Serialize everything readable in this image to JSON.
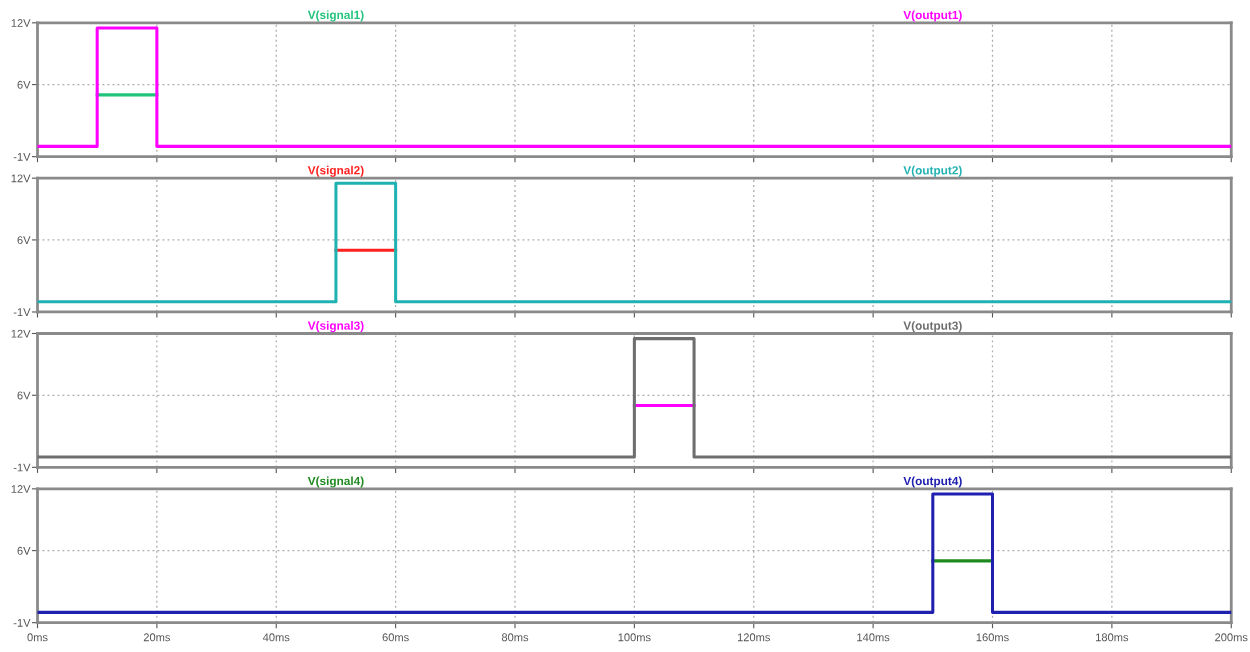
{
  "chart_data": [
    {
      "type": "line",
      "xlim": [
        0,
        200
      ],
      "xticks": [
        {
          "value": 0,
          "label": null
        },
        {
          "value": 20,
          "label": null
        },
        {
          "value": 40,
          "label": null
        },
        {
          "value": 60,
          "label": null
        },
        {
          "value": 80,
          "label": null
        },
        {
          "value": 100,
          "label": null
        },
        {
          "value": 120,
          "label": null
        },
        {
          "value": 140,
          "label": null
        },
        {
          "value": 160,
          "label": null
        },
        {
          "value": 180,
          "label": null
        },
        {
          "value": 200,
          "label": null
        }
      ],
      "ylim": [
        -1,
        12
      ],
      "yticks": [
        {
          "value": -1,
          "label": "-1V"
        },
        {
          "value": 6,
          "label": "6V"
        },
        {
          "value": 12,
          "label": "12V"
        }
      ],
      "grid": true,
      "legend": "top",
      "tick_labels": "y",
      "series": [
        {
          "name": "V(signal1)",
          "color": "#20c47a",
          "x": [
            10,
            20
          ],
          "values": [
            5,
            5
          ]
        },
        {
          "name": "V(output1)",
          "color": "#ff00ff",
          "x": [
            0,
            10,
            10,
            20,
            20,
            200
          ],
          "values": [
            0,
            0,
            11.5,
            11.5,
            0,
            0
          ]
        }
      ]
    },
    {
      "type": "line",
      "xlim": [
        0,
        200
      ],
      "xticks": [
        {
          "value": 0,
          "label": null
        },
        {
          "value": 20,
          "label": null
        },
        {
          "value": 40,
          "label": null
        },
        {
          "value": 60,
          "label": null
        },
        {
          "value": 80,
          "label": null
        },
        {
          "value": 100,
          "label": null
        },
        {
          "value": 120,
          "label": null
        },
        {
          "value": 140,
          "label": null
        },
        {
          "value": 160,
          "label": null
        },
        {
          "value": 180,
          "label": null
        },
        {
          "value": 200,
          "label": null
        }
      ],
      "ylim": [
        -1,
        12
      ],
      "yticks": [
        {
          "value": -1,
          "label": "-1V"
        },
        {
          "value": 6,
          "label": "6V"
        },
        {
          "value": 12,
          "label": "12V"
        }
      ],
      "grid": true,
      "legend": "top",
      "tick_labels": "y",
      "series": [
        {
          "name": "V(signal2)",
          "color": "#ff2020",
          "x": [
            50,
            60
          ],
          "values": [
            5,
            5
          ]
        },
        {
          "name": "V(output2)",
          "color": "#20b2b2",
          "x": [
            0,
            50,
            50,
            60,
            60,
            200
          ],
          "values": [
            0,
            0,
            11.5,
            11.5,
            0,
            0
          ]
        }
      ]
    },
    {
      "type": "line",
      "xlim": [
        0,
        200
      ],
      "xticks": [
        {
          "value": 0,
          "label": null
        },
        {
          "value": 20,
          "label": null
        },
        {
          "value": 40,
          "label": null
        },
        {
          "value": 60,
          "label": null
        },
        {
          "value": 80,
          "label": null
        },
        {
          "value": 100,
          "label": null
        },
        {
          "value": 120,
          "label": null
        },
        {
          "value": 140,
          "label": null
        },
        {
          "value": 160,
          "label": null
        },
        {
          "value": 180,
          "label": null
        },
        {
          "value": 200,
          "label": null
        }
      ],
      "ylim": [
        -1,
        12
      ],
      "yticks": [
        {
          "value": -1,
          "label": "-1V"
        },
        {
          "value": 6,
          "label": "6V"
        },
        {
          "value": 12,
          "label": "12V"
        }
      ],
      "grid": true,
      "legend": "top",
      "tick_labels": "y",
      "series": [
        {
          "name": "V(signal3)",
          "color": "#ff00ff",
          "x": [
            100,
            110
          ],
          "values": [
            5,
            5
          ]
        },
        {
          "name": "V(output3)",
          "color": "#6e6e6e",
          "x": [
            0,
            100,
            100,
            110,
            110,
            200
          ],
          "values": [
            0,
            0,
            11.5,
            11.5,
            0,
            0
          ]
        }
      ]
    },
    {
      "type": "line",
      "xlim": [
        0,
        200
      ],
      "xticks": [
        {
          "value": 0,
          "label": "0ms"
        },
        {
          "value": 20,
          "label": "20ms"
        },
        {
          "value": 40,
          "label": "40ms"
        },
        {
          "value": 60,
          "label": "60ms"
        },
        {
          "value": 80,
          "label": "80ms"
        },
        {
          "value": 100,
          "label": "100ms"
        },
        {
          "value": 120,
          "label": "120ms"
        },
        {
          "value": 140,
          "label": "140ms"
        },
        {
          "value": 160,
          "label": "160ms"
        },
        {
          "value": 180,
          "label": "180ms"
        },
        {
          "value": 200,
          "label": "200ms"
        }
      ],
      "ylim": [
        -1,
        12
      ],
      "yticks": [
        {
          "value": -1,
          "label": "-1V"
        },
        {
          "value": 6,
          "label": "6V"
        },
        {
          "value": 12,
          "label": "12V"
        }
      ],
      "grid": true,
      "legend": "top",
      "series": [
        {
          "name": "V(signal4)",
          "color": "#1e8a1e",
          "x": [
            150,
            160
          ],
          "values": [
            5,
            5
          ]
        },
        {
          "name": "V(output4)",
          "color": "#2020b0",
          "x": [
            0,
            150,
            150,
            160,
            160,
            200
          ],
          "values": [
            0,
            0,
            11.5,
            11.5,
            0,
            0
          ]
        }
      ]
    }
  ]
}
